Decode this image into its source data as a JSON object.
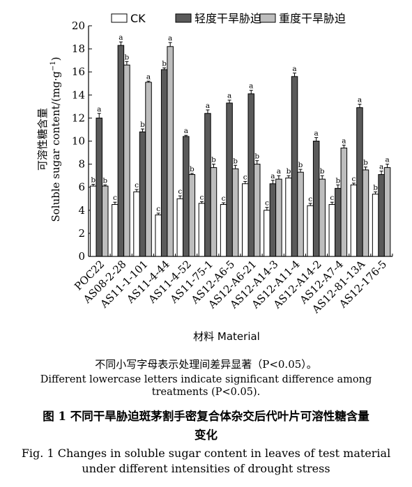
{
  "chart_data": {
    "type": "bar",
    "title": "",
    "xlabel": "材料 Material",
    "ylabel_cn": "可溶性糖含量",
    "ylabel_en": "Soluble sugar content/(mg·g",
    "ylabel_sup": "−1",
    "ylabel_tail": ")",
    "ylim": [
      0,
      20
    ],
    "yticks": [
      0,
      2,
      4,
      6,
      8,
      10,
      12,
      14,
      16,
      18,
      20
    ],
    "legend_position": "top",
    "categories": [
      "POC22",
      "AS08-2-28",
      "AS11-1-101",
      "AS11-4-44",
      "AS11-4-52",
      "AS11-75-1",
      "AS12-A6-5",
      "AS12-A6-21",
      "AS12-A14-3",
      "AS12-A11-4",
      "AS12-A14-2",
      "AS12-A7-4",
      "AS12-81-13A",
      "AS12-176-5"
    ],
    "series": [
      {
        "name": "CK",
        "color": "#ffffff",
        "values": [
          6.1,
          4.5,
          5.6,
          3.6,
          5.0,
          4.6,
          4.5,
          6.3,
          4.0,
          6.8,
          4.4,
          4.5,
          6.2,
          5.4
        ],
        "errors": [
          0.15,
          0.2,
          0.2,
          0.15,
          0.25,
          0.15,
          0.15,
          0.2,
          0.25,
          0.2,
          0.2,
          0.2,
          0.15,
          0.2
        ],
        "letters": [
          "b",
          "c",
          "c",
          "c",
          "c",
          "c",
          "c",
          "c",
          "c",
          "b",
          "c",
          "c",
          "c",
          "b"
        ]
      },
      {
        "name": "轻度干旱胁迫",
        "color": "#5a5a5a",
        "values": [
          12.0,
          18.3,
          10.8,
          16.2,
          10.4,
          12.4,
          13.3,
          14.1,
          6.3,
          15.6,
          10.0,
          5.9,
          12.9,
          7.1
        ],
        "errors": [
          0.4,
          0.3,
          0.25,
          0.15,
          0.1,
          0.3,
          0.25,
          0.3,
          0.3,
          0.3,
          0.3,
          0.3,
          0.3,
          0.3
        ],
        "letters": [
          "a",
          "a",
          "b",
          "b",
          "a",
          "a",
          "a",
          "a",
          "a",
          "a",
          "a",
          "b",
          "a",
          "a"
        ]
      },
      {
        "name": "重度干旱胁迫",
        "color": "#bdbdbd",
        "values": [
          6.1,
          16.6,
          15.1,
          18.2,
          7.1,
          7.7,
          7.6,
          8.0,
          6.7,
          7.3,
          6.7,
          9.4,
          7.5,
          7.7
        ],
        "errors": [
          0.1,
          0.3,
          0.1,
          0.35,
          0.1,
          0.3,
          0.3,
          0.3,
          0.3,
          0.25,
          0.3,
          0.25,
          0.25,
          0.3
        ],
        "letters": [
          "b",
          "b",
          "a",
          "a",
          "b",
          "b",
          "b",
          "b",
          "a",
          "b",
          "b",
          "a",
          "b",
          "a"
        ]
      }
    ]
  },
  "caption": {
    "note_cn": "不同小写字母表示处理间差异显著（P<0.05）。",
    "note_en": "Different lowercase letters indicate significant difference among treatments (P<0.05).",
    "title_cn": "图 1    不同干旱胁迫斑茅割手密复合体杂交后代叶片可溶性糖含量变化",
    "title_en": "Fig. 1    Changes in soluble sugar content in leaves of test material under different intensities of drought stress"
  }
}
